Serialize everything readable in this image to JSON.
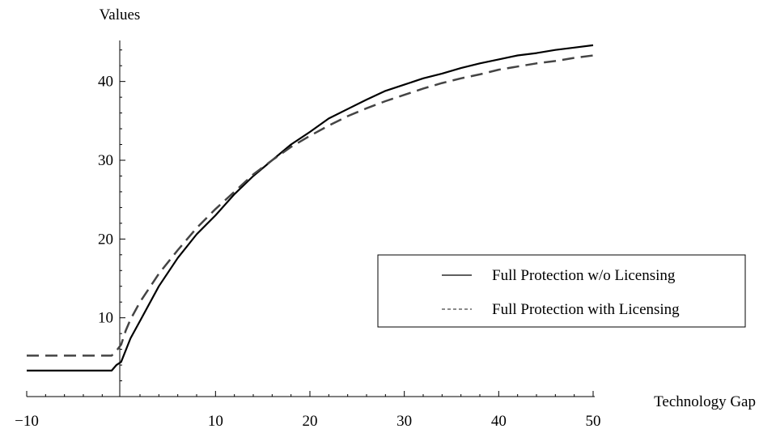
{
  "chart_data": {
    "type": "line",
    "title": "",
    "xlabel": "Technology Gap",
    "ylabel": "Values",
    "xlim": [
      -10,
      50
    ],
    "ylim": [
      0,
      45
    ],
    "x_ticks": [
      -10,
      10,
      20,
      30,
      40,
      50
    ],
    "x_tick_labels": [
      "−10",
      "10",
      "20",
      "30",
      "40",
      "50"
    ],
    "y_ticks": [
      10,
      20,
      30,
      40
    ],
    "y_tick_labels": [
      "10",
      "20",
      "30",
      "40"
    ],
    "grid": false,
    "legend_position": "right",
    "series": [
      {
        "name": "Full Protection w/o Licensing",
        "style": "solid",
        "color": "#000000",
        "x": [
          -10,
          -2,
          -1,
          -0.5,
          0,
          1,
          2,
          4,
          6,
          8,
          10,
          12,
          14,
          16,
          18,
          20,
          22,
          24,
          26,
          28,
          30,
          32,
          34,
          36,
          38,
          40,
          42,
          44,
          46,
          48,
          50
        ],
        "y": [
          3.3,
          3.3,
          3.3,
          4.0,
          4.4,
          7.4,
          9.6,
          14.0,
          17.6,
          20.6,
          23.0,
          25.7,
          28.0,
          30.0,
          32.0,
          33.6,
          35.3,
          36.5,
          37.7,
          38.8,
          39.6,
          40.4,
          41.0,
          41.7,
          42.3,
          42.8,
          43.3,
          43.6,
          44.0,
          44.3,
          44.6
        ]
      },
      {
        "name": "Full Protection with Licensing",
        "style": "dashed",
        "color": "#444444",
        "x": [
          -10,
          -2,
          -1,
          -0.5,
          0,
          0.5,
          1,
          2,
          4,
          6,
          8,
          10,
          12,
          14,
          16,
          18,
          20,
          22,
          24,
          26,
          28,
          30,
          32,
          34,
          36,
          38,
          40,
          42,
          44,
          46,
          48,
          50
        ],
        "y": [
          5.2,
          5.2,
          5.2,
          5.8,
          6.6,
          8.4,
          9.8,
          12.0,
          15.6,
          18.6,
          21.4,
          23.8,
          26.0,
          28.2,
          30.0,
          31.7,
          33.1,
          34.4,
          35.6,
          36.6,
          37.5,
          38.3,
          39.1,
          39.8,
          40.4,
          40.9,
          41.5,
          41.9,
          42.3,
          42.6,
          43.0,
          43.3
        ]
      }
    ]
  }
}
